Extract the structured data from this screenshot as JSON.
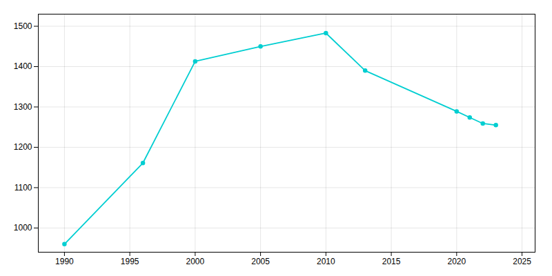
{
  "chart_data": {
    "type": "line",
    "x": [
      1990,
      1996,
      2000,
      2005,
      2010,
      2013,
      2020,
      2021,
      2022,
      2023
    ],
    "values": [
      960,
      1161,
      1413,
      1450,
      1483,
      1390,
      1289,
      1274,
      1259,
      1255
    ],
    "color": "#00CED1",
    "marker": "circle",
    "xlim": [
      1988,
      2026
    ],
    "ylim": [
      940,
      1530
    ],
    "xticks": [
      1990,
      1995,
      2000,
      2005,
      2010,
      2015,
      2020,
      2025
    ],
    "yticks": [
      1000,
      1100,
      1200,
      1300,
      1400,
      1500
    ],
    "grid": true
  }
}
